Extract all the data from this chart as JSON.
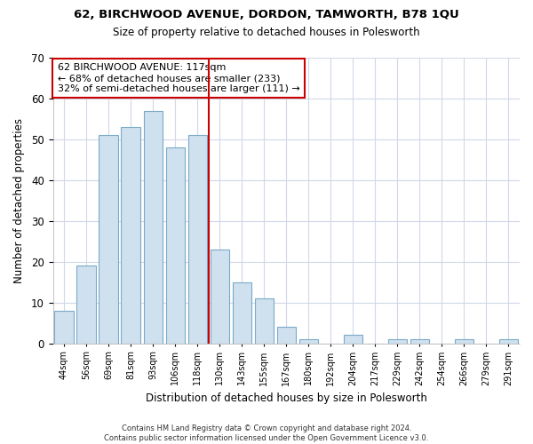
{
  "title1": "62, BIRCHWOOD AVENUE, DORDON, TAMWORTH, B78 1QU",
  "title2": "Size of property relative to detached houses in Polesworth",
  "xlabel": "Distribution of detached houses by size in Polesworth",
  "ylabel": "Number of detached properties",
  "categories": [
    "44sqm",
    "56sqm",
    "69sqm",
    "81sqm",
    "93sqm",
    "106sqm",
    "118sqm",
    "130sqm",
    "143sqm",
    "155sqm",
    "167sqm",
    "180sqm",
    "192sqm",
    "204sqm",
    "217sqm",
    "229sqm",
    "242sqm",
    "254sqm",
    "266sqm",
    "279sqm",
    "291sqm"
  ],
  "values": [
    8,
    19,
    51,
    53,
    57,
    48,
    51,
    23,
    15,
    11,
    4,
    1,
    0,
    2,
    0,
    1,
    1,
    0,
    1,
    0,
    1
  ],
  "bar_color": "#cfe0ef",
  "bar_edge_color": "#7aaac8",
  "vline_color": "#cc0000",
  "annotation_text": "62 BIRCHWOOD AVENUE: 117sqm\n← 68% of detached houses are smaller (233)\n32% of semi-detached houses are larger (111) →",
  "annotation_box_color": "#ffffff",
  "annotation_box_edge": "#cc0000",
  "ylim": [
    0,
    70
  ],
  "yticks": [
    0,
    10,
    20,
    30,
    40,
    50,
    60,
    70
  ],
  "footer1": "Contains HM Land Registry data © Crown copyright and database right 2024.",
  "footer2": "Contains public sector information licensed under the Open Government Licence v3.0.",
  "bg_color": "#ffffff",
  "plot_bg_color": "#ffffff",
  "grid_color": "#d0d8e8"
}
